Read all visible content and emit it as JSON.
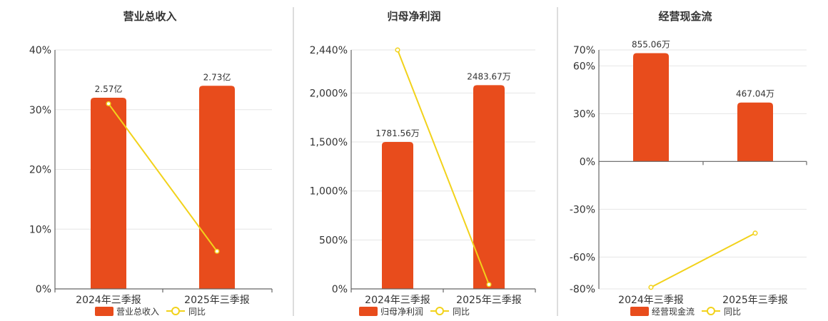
{
  "colors": {
    "bar": "#E84C1C",
    "line": "#F2D21B"
  },
  "chart_data": [
    {
      "type": "bar+line",
      "title": "营业总收入",
      "categories": [
        "2024年三季报",
        "2025年三季报"
      ],
      "ylim": [
        0,
        40
      ],
      "y_ticks": [
        "0%",
        "10%",
        "20%",
        "30%",
        "40%"
      ],
      "tick_values": [
        0,
        10,
        20,
        30,
        40
      ],
      "series": [
        {
          "name": "营业总收入",
          "kind": "bar",
          "values": [
            32,
            34
          ],
          "labels": [
            "2.57亿",
            "2.73亿"
          ]
        },
        {
          "name": "同比",
          "kind": "line",
          "values": [
            31,
            6.3
          ]
        }
      ],
      "grid": true,
      "legend": "bottom"
    },
    {
      "type": "bar+line",
      "title": "归母净利润",
      "categories": [
        "2024年三季报",
        "2025年三季报"
      ],
      "ylim": [
        0,
        2440
      ],
      "y_ticks": [
        "0%",
        "500%",
        "1,000%",
        "1,500%",
        "2,000%",
        "2,440%"
      ],
      "tick_values": [
        0,
        500,
        1000,
        1500,
        2000,
        2440
      ],
      "series": [
        {
          "name": "归母净利润",
          "kind": "bar",
          "values": [
            1500,
            2080
          ],
          "labels": [
            "1781.56万",
            "2483.67万"
          ]
        },
        {
          "name": "同比",
          "kind": "line",
          "values": [
            2440,
            45
          ]
        }
      ],
      "grid": true,
      "legend": "bottom"
    },
    {
      "type": "bar+line",
      "title": "经营现金流",
      "categories": [
        "2024年三季报",
        "2025年三季报"
      ],
      "ylim": [
        -80,
        70
      ],
      "y_ticks": [
        "-80%",
        "-60%",
        "-30%",
        "0%",
        "30%",
        "60%",
        "70%"
      ],
      "tick_values": [
        -80,
        -60,
        -30,
        0,
        30,
        60,
        70
      ],
      "series": [
        {
          "name": "经营现金流",
          "kind": "bar",
          "values": [
            68,
            37
          ],
          "labels": [
            "855.06万",
            "467.04万"
          ]
        },
        {
          "name": "同比",
          "kind": "line",
          "values": [
            -79,
            -45
          ]
        }
      ],
      "grid": true,
      "legend": "bottom"
    }
  ]
}
